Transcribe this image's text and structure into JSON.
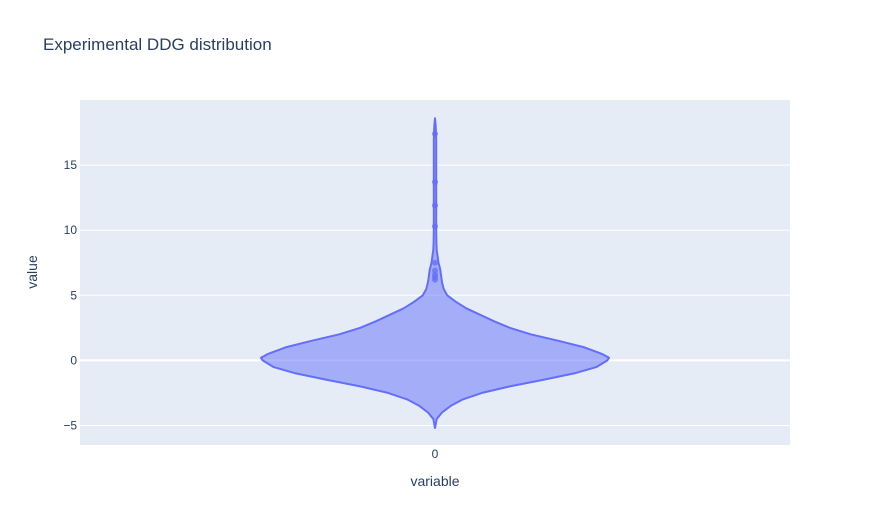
{
  "chart_data": {
    "type": "violin",
    "title": "Experimental DDG distribution",
    "xlabel": "variable",
    "ylabel": "value",
    "categories": [
      "0"
    ],
    "ylim": [
      -6.5,
      20
    ],
    "yticks": [
      -5,
      0,
      5,
      10,
      15
    ],
    "ytick_labels": [
      "−5",
      "0",
      "5",
      "10",
      "15"
    ],
    "grid": true,
    "legend": "none",
    "colors": {
      "violin_fill": "#636efa",
      "violin_line": "#636efa",
      "plot_bg": "#e5ecf6",
      "grid": "#ffffff",
      "text": "#2a3f5f"
    },
    "series": [
      {
        "category": "0",
        "density_profile": [
          [
            -5.2,
            0.0
          ],
          [
            -4.5,
            0.01
          ],
          [
            -4.0,
            0.04
          ],
          [
            -3.5,
            0.09
          ],
          [
            -3.0,
            0.16
          ],
          [
            -2.5,
            0.27
          ],
          [
            -2.0,
            0.43
          ],
          [
            -1.5,
            0.62
          ],
          [
            -1.0,
            0.8
          ],
          [
            -0.5,
            0.93
          ],
          [
            0.0,
            0.99
          ],
          [
            0.2,
            1.0
          ],
          [
            0.5,
            0.96
          ],
          [
            1.0,
            0.86
          ],
          [
            1.5,
            0.71
          ],
          [
            2.0,
            0.55
          ],
          [
            2.5,
            0.43
          ],
          [
            3.0,
            0.34
          ],
          [
            3.5,
            0.26
          ],
          [
            4.0,
            0.18
          ],
          [
            4.5,
            0.12
          ],
          [
            5.0,
            0.07
          ],
          [
            5.5,
            0.05
          ],
          [
            6.0,
            0.04
          ],
          [
            6.5,
            0.035
          ],
          [
            7.0,
            0.03
          ],
          [
            7.5,
            0.02
          ],
          [
            8.0,
            0.015
          ],
          [
            8.5,
            0.01
          ],
          [
            9.0,
            0.008
          ],
          [
            10.0,
            0.007
          ],
          [
            11.0,
            0.007
          ],
          [
            12.0,
            0.007
          ],
          [
            13.0,
            0.007
          ],
          [
            14.0,
            0.007
          ],
          [
            15.0,
            0.007
          ],
          [
            16.0,
            0.007
          ],
          [
            17.0,
            0.007
          ],
          [
            18.0,
            0.004
          ],
          [
            18.6,
            0.0
          ]
        ],
        "outliers": [
          6.2,
          6.4,
          6.6,
          6.9,
          7.5,
          10.3,
          11.9,
          13.7,
          17.4
        ]
      }
    ]
  }
}
